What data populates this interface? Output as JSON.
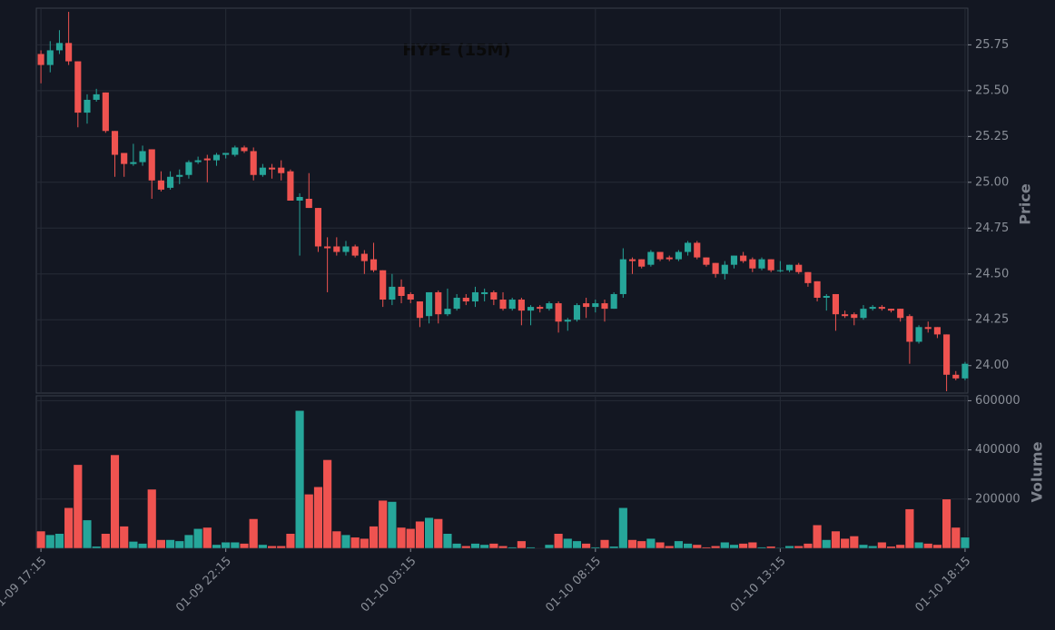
{
  "chart_data": {
    "type": "candlestick",
    "title": "HYPE (15M)",
    "ylabel": "Price",
    "volume_label": "Volume",
    "up_color": "#26a69a",
    "down_color": "#ef5350",
    "grid": true,
    "xlim": [
      -0.5,
      100.3
    ],
    "xticks": [
      {
        "value": 0,
        "label": "01-09 17:15"
      },
      {
        "value": 20,
        "label": "01-09 22:15"
      },
      {
        "value": 40,
        "label": "01-10 03:15"
      },
      {
        "value": 60,
        "label": "01-10 08:15"
      },
      {
        "value": 80,
        "label": "01-10 13:15"
      },
      {
        "value": 100,
        "label": "01-10 18:15"
      }
    ],
    "ylim": [
      23.85,
      25.95
    ],
    "yticks": [
      {
        "value": 24,
        "label": "24.00"
      },
      {
        "value": 24.25,
        "label": "24.25"
      },
      {
        "value": 24.5,
        "label": "24.50"
      },
      {
        "value": 24.75,
        "label": "24.75"
      },
      {
        "value": 25,
        "label": "25.00"
      },
      {
        "value": 25.25,
        "label": "25.25"
      },
      {
        "value": 25.5,
        "label": "25.50"
      },
      {
        "value": 25.75,
        "label": "25.75"
      }
    ],
    "volume_ylim": [
      0,
      620000
    ],
    "volume_yticks": [
      200000,
      400000,
      600000
    ],
    "open": [
      25.7,
      25.64,
      25.72,
      25.76,
      25.66,
      25.38,
      25.45,
      25.49,
      25.28,
      25.16,
      25.1,
      25.11,
      25.18,
      25.01,
      24.97,
      25.03,
      25.04,
      25.11,
      25.13,
      25.12,
      25.15,
      25.15,
      25.19,
      25.17,
      25.04,
      25.08,
      25.08,
      25.06,
      24.9,
      24.91,
      24.86,
      24.65,
      24.65,
      24.62,
      24.65,
      24.61,
      24.58,
      24.52,
      24.36,
      24.43,
      24.39,
      24.35,
      24.27,
      24.4,
      24.28,
      24.31,
      24.37,
      24.35,
      24.39,
      24.4,
      24.36,
      24.31,
      24.36,
      24.3,
      24.32,
      24.31,
      24.34,
      24.24,
      24.25,
      24.34,
      24.32,
      24.34,
      24.31,
      24.39,
      24.58,
      24.58,
      24.55,
      24.62,
      24.59,
      24.58,
      24.62,
      24.67,
      24.59,
      24.56,
      24.5,
      24.55,
      24.6,
      24.58,
      24.53,
      24.58,
      24.52,
      24.52,
      24.55,
      24.51,
      24.46,
      24.37,
      24.39,
      24.28,
      24.28,
      24.26,
      24.31,
      24.32,
      24.31,
      24.31,
      24.27,
      24.13,
      24.21,
      24.21,
      24.17,
      23.95,
      23.93
    ],
    "high": [
      25.72,
      25.77,
      25.83,
      25.93,
      25.66,
      25.48,
      25.51,
      25.49,
      25.28,
      25.16,
      25.21,
      25.2,
      25.18,
      25.06,
      25.06,
      25.07,
      25.12,
      25.14,
      25.15,
      25.16,
      25.16,
      25.2,
      25.2,
      25.19,
      25.1,
      25.1,
      25.12,
      25.07,
      24.94,
      25.05,
      24.86,
      24.7,
      24.7,
      24.68,
      24.66,
      24.63,
      24.67,
      24.52,
      24.5,
      24.47,
      24.4,
      24.35,
      24.4,
      24.41,
      24.42,
      24.39,
      24.39,
      24.43,
      24.42,
      24.41,
      24.4,
      24.37,
      24.37,
      24.33,
      24.33,
      24.35,
      24.35,
      24.26,
      24.34,
      24.37,
      24.36,
      24.36,
      24.4,
      24.64,
      24.59,
      24.58,
      24.63,
      24.62,
      24.6,
      24.63,
      24.68,
      24.68,
      24.59,
      24.56,
      24.57,
      24.6,
      24.62,
      24.59,
      24.59,
      24.58,
      24.57,
      24.55,
      24.56,
      24.51,
      24.46,
      24.39,
      24.39,
      24.3,
      24.29,
      24.33,
      24.33,
      24.33,
      24.31,
      24.31,
      24.28,
      24.22,
      24.24,
      24.21,
      24.17,
      23.97,
      24.02
    ],
    "low": [
      25.54,
      25.6,
      25.7,
      25.64,
      25.3,
      25.32,
      25.44,
      25.27,
      25.03,
      25.03,
      25.09,
      25.09,
      24.91,
      24.95,
      24.96,
      24.99,
      25.02,
      25.1,
      25.0,
      25.09,
      25.13,
      25.14,
      25.16,
      25.01,
      25.03,
      25.02,
      25.01,
      24.9,
      24.6,
      24.86,
      24.62,
      24.4,
      24.6,
      24.6,
      24.59,
      24.5,
      24.51,
      24.32,
      24.33,
      24.34,
      24.34,
      24.21,
      24.23,
      24.23,
      24.27,
      24.3,
      24.33,
      24.32,
      24.35,
      24.33,
      24.3,
      24.3,
      24.22,
      24.22,
      24.29,
      24.3,
      24.18,
      24.19,
      24.24,
      24.26,
      24.29,
      24.24,
      24.31,
      24.37,
      24.5,
      24.53,
      24.54,
      24.57,
      24.57,
      24.57,
      24.6,
      24.58,
      24.54,
      24.48,
      24.47,
      24.53,
      24.56,
      24.51,
      24.52,
      24.51,
      24.51,
      24.51,
      24.5,
      24.43,
      24.35,
      24.3,
      24.19,
      24.26,
      24.22,
      24.25,
      24.3,
      24.3,
      24.29,
      24.24,
      24.01,
      24.12,
      24.18,
      24.15,
      23.86,
      23.92,
      23.92
    ],
    "close": [
      25.64,
      25.72,
      25.76,
      25.66,
      25.38,
      25.45,
      25.48,
      25.28,
      25.15,
      25.1,
      25.11,
      25.17,
      25.01,
      24.96,
      25.03,
      25.04,
      25.11,
      25.12,
      25.12,
      25.15,
      25.16,
      25.19,
      25.17,
      25.04,
      25.08,
      25.07,
      25.05,
      24.9,
      24.92,
      24.86,
      24.65,
      24.64,
      24.62,
      24.65,
      24.6,
      24.57,
      24.52,
      24.36,
      24.43,
      24.38,
      24.36,
      24.26,
      24.4,
      24.28,
      24.31,
      24.37,
      24.35,
      24.4,
      24.4,
      24.36,
      24.31,
      24.36,
      24.3,
      24.32,
      24.31,
      24.34,
      24.24,
      24.25,
      24.33,
      24.32,
      24.34,
      24.31,
      24.39,
      24.58,
      24.57,
      24.54,
      24.62,
      24.58,
      24.58,
      24.62,
      24.67,
      24.59,
      24.55,
      24.5,
      24.55,
      24.6,
      24.57,
      24.53,
      24.58,
      24.52,
      24.52,
      24.55,
      24.51,
      24.45,
      24.37,
      24.38,
      24.28,
      24.27,
      24.26,
      24.31,
      24.32,
      24.31,
      24.3,
      24.26,
      24.13,
      24.21,
      24.2,
      24.17,
      23.95,
      23.93,
      24.01
    ],
    "volume": [
      70000,
      55000,
      60000,
      165000,
      340000,
      115000,
      8000,
      60000,
      380000,
      90000,
      28000,
      20000,
      240000,
      35000,
      35000,
      30000,
      55000,
      80000,
      85000,
      15000,
      25000,
      25000,
      20000,
      120000,
      15000,
      10000,
      10000,
      60000,
      560000,
      220000,
      250000,
      360000,
      70000,
      55000,
      45000,
      40000,
      90000,
      195000,
      190000,
      85000,
      80000,
      110000,
      125000,
      120000,
      60000,
      20000,
      10000,
      20000,
      15000,
      20000,
      10000,
      5000,
      30000,
      5000,
      2000,
      15000,
      60000,
      40000,
      30000,
      20000,
      5000,
      35000,
      8000,
      165000,
      35000,
      30000,
      40000,
      25000,
      10000,
      30000,
      20000,
      15000,
      5000,
      10000,
      25000,
      15000,
      20000,
      25000,
      5000,
      8000,
      3000,
      10000,
      10000,
      20000,
      95000,
      35000,
      70000,
      40000,
      50000,
      15000,
      10000,
      25000,
      8000,
      15000,
      160000,
      25000,
      20000,
      15000,
      200000,
      85000,
      45000
    ]
  }
}
